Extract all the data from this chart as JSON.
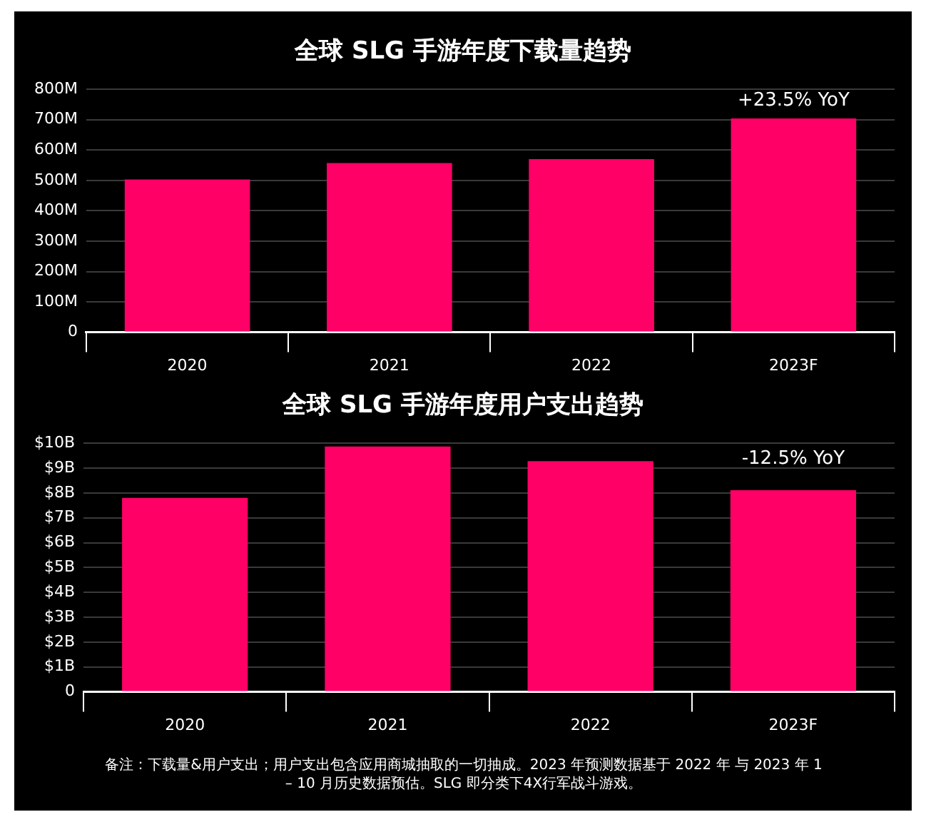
{
  "chart_data": [
    {
      "type": "bar",
      "title": "全球 SLG 手游年度下载量趋势",
      "categories": [
        "2020",
        "2021",
        "2022",
        "2023F"
      ],
      "values": [
        503,
        557,
        570,
        704
      ],
      "color": "#ff0066",
      "ylim": [
        0,
        800
      ],
      "yticks": [
        0,
        {
          "value": 100,
          "label": "100M"
        },
        {
          "value": 200,
          "label": "200M"
        },
        {
          "value": 300,
          "label": "300M"
        },
        {
          "value": 400,
          "label": "400M"
        },
        {
          "value": 500,
          "label": "500M"
        },
        {
          "value": 600,
          "label": "600M"
        },
        {
          "value": 700,
          "label": "700M"
        },
        {
          "value": 800,
          "label": "800M"
        }
      ],
      "grid": "y",
      "legend": false,
      "annotations": [
        "+23.5% YoY"
      ]
    },
    {
      "type": "bar",
      "title": "全球 SLG 手游年度用户支出趋势",
      "categories": [
        "2020",
        "2021",
        "2022",
        "2023F"
      ],
      "values": [
        7.8,
        9.87,
        9.28,
        8.11
      ],
      "color": "#ff0066",
      "ylim": [
        0,
        10
      ],
      "yticks": [
        0,
        {
          "value": 1,
          "label": "$1B"
        },
        {
          "value": 2,
          "label": "$2B"
        },
        {
          "value": 3,
          "label": "$3B"
        },
        {
          "value": 4,
          "label": "$4B"
        },
        {
          "value": 5,
          "label": "$5B"
        },
        {
          "value": 6,
          "label": "$6B"
        },
        {
          "value": 7,
          "label": "$7B"
        },
        {
          "value": 8,
          "label": "$8B"
        },
        {
          "value": 9,
          "label": "$9B"
        },
        {
          "value": 10,
          "label": "$10B"
        }
      ],
      "grid": "y",
      "legend": false,
      "annotations": [
        "-12.5% YoY",
        "备注：下载量&用户支出；用户支出包含应用商城抽取的一切抽成。2023 年预测数据基于 2022 年 与 2023 年 1 – 10 月历史数据预估。SLG 即分类下4X行军战斗游戏。"
      ]
    }
  ]
}
